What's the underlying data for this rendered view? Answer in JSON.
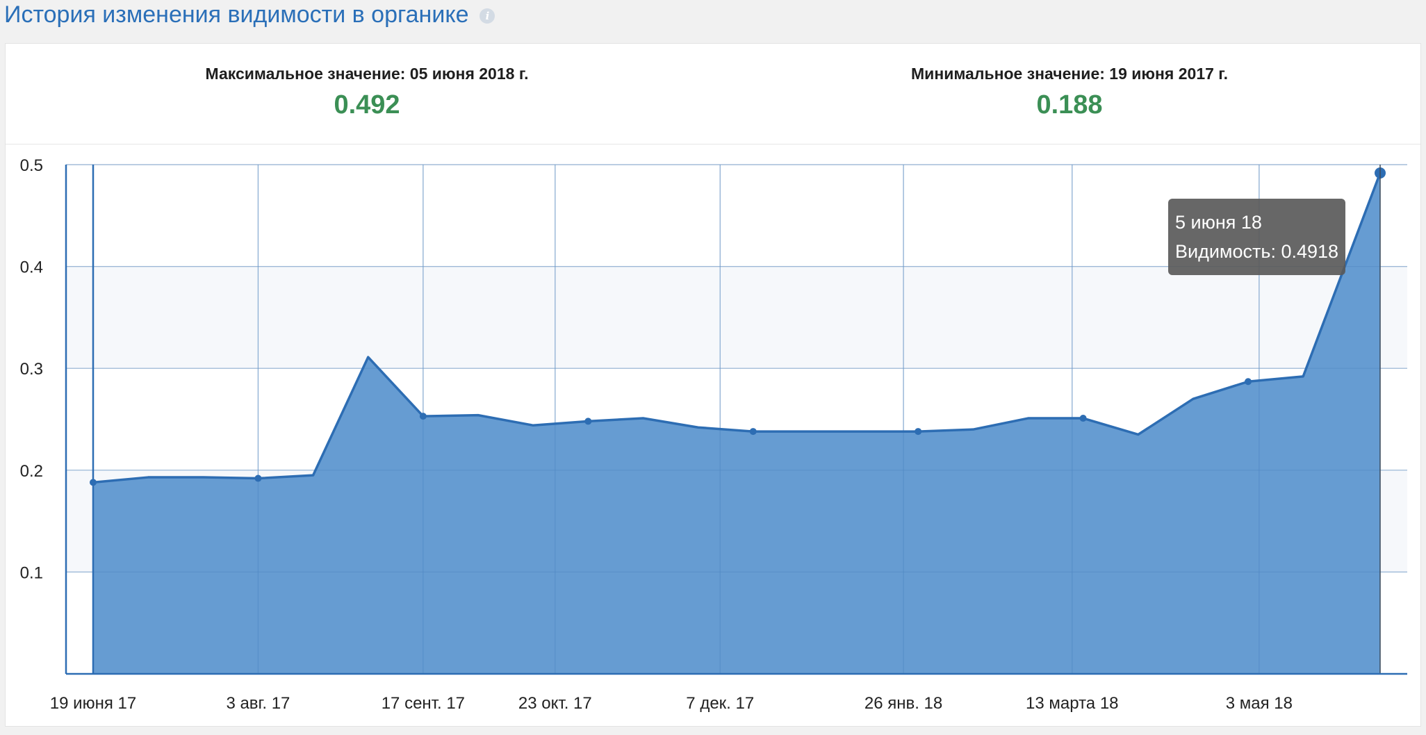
{
  "header": {
    "title": "История изменения видимости в органике",
    "info_icon": "info-icon"
  },
  "stats": {
    "max": {
      "label": "Максимальное значение: 05 июня 2018 г.",
      "value": "0.492"
    },
    "min": {
      "label": "Минимальное значение: 19 июня 2017 г.",
      "value": "0.188"
    }
  },
  "tooltip": {
    "date": "5 июня 18",
    "value_text": "Видимость: 0.4918"
  },
  "colors": {
    "title": "#2a6fb8",
    "line": "#2d6db3",
    "fill": "#5e97d0",
    "value": "#3b8f55",
    "tooltip_bg": "#5a5a5a"
  },
  "chart_data": {
    "type": "area",
    "title": "",
    "xlabel": "",
    "ylabel": "",
    "ylim": [
      0,
      0.5
    ],
    "yticks": [
      0.1,
      0.2,
      0.3,
      0.4,
      0.5
    ],
    "xlim": [
      "2017-06-19",
      "2018-06-05"
    ],
    "xtick_labels": [
      {
        "date": "2017-06-19",
        "label": "19 июня 17"
      },
      {
        "date": "2017-08-03",
        "label": "3 авг. 17"
      },
      {
        "date": "2017-09-17",
        "label": "17 сент. 17"
      },
      {
        "date": "2017-10-23",
        "label": "23 окт. 17"
      },
      {
        "date": "2017-12-07",
        "label": "7 дек. 17"
      },
      {
        "date": "2018-01-26",
        "label": "26 янв. 18"
      },
      {
        "date": "2018-03-13",
        "label": "13 марта 18"
      },
      {
        "date": "2018-05-03",
        "label": "3 мая 18"
      }
    ],
    "grid": true,
    "series": [
      {
        "points": [
          {
            "x": "2017-06-19",
            "y": 0.188,
            "marker": true
          },
          {
            "x": "2017-07-04",
            "y": 0.193,
            "marker": false
          },
          {
            "x": "2017-07-19",
            "y": 0.193,
            "marker": false
          },
          {
            "x": "2017-08-03",
            "y": 0.192,
            "marker": true
          },
          {
            "x": "2017-08-18",
            "y": 0.195,
            "marker": false
          },
          {
            "x": "2017-09-02",
            "y": 0.311,
            "marker": false
          },
          {
            "x": "2017-09-17",
            "y": 0.253,
            "marker": true
          },
          {
            "x": "2017-10-02",
            "y": 0.254,
            "marker": false
          },
          {
            "x": "2017-10-17",
            "y": 0.244,
            "marker": false
          },
          {
            "x": "2017-11-01",
            "y": 0.248,
            "marker": true
          },
          {
            "x": "2017-11-16",
            "y": 0.251,
            "marker": false
          },
          {
            "x": "2017-12-01",
            "y": 0.242,
            "marker": false
          },
          {
            "x": "2017-12-16",
            "y": 0.238,
            "marker": true
          },
          {
            "x": "2018-01-15",
            "y": 0.238,
            "marker": false
          },
          {
            "x": "2018-01-30",
            "y": 0.238,
            "marker": true
          },
          {
            "x": "2018-02-14",
            "y": 0.24,
            "marker": false
          },
          {
            "x": "2018-03-01",
            "y": 0.251,
            "marker": false
          },
          {
            "x": "2018-03-16",
            "y": 0.251,
            "marker": true
          },
          {
            "x": "2018-03-31",
            "y": 0.235,
            "marker": false
          },
          {
            "x": "2018-04-15",
            "y": 0.27,
            "marker": false
          },
          {
            "x": "2018-04-30",
            "y": 0.287,
            "marker": true
          },
          {
            "x": "2018-05-15",
            "y": 0.292,
            "marker": false
          },
          {
            "x": "2018-06-05",
            "y": 0.4918,
            "marker": true
          }
        ]
      }
    ]
  }
}
